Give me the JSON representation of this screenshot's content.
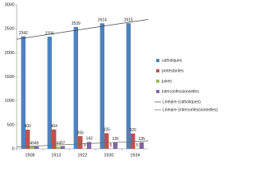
{
  "chart_data": {
    "type": "bar",
    "categories": [
      "1908",
      "1913",
      "1922",
      "1930",
      "1934"
    ],
    "series": [
      {
        "name": "catholiques",
        "color": "#4f81bd",
        "values": [
          2342,
          2336,
          2539,
          2614,
          2615
        ]
      },
      {
        "name": "protestantes",
        "color": "#c0504d",
        "values": [
          400,
          404,
          265,
          325,
          320
        ]
      },
      {
        "name": "juives",
        "color": "#9bbb59",
        "values": [
          49,
          44,
          9,
          5,
          5
        ]
      },
      {
        "name": "interconfessionnelles",
        "color": "#8064a2",
        "values": [
          49,
          57,
          143,
          135,
          135
        ]
      }
    ],
    "trendlines": [
      {
        "name": "Linéaire (catholiques)",
        "series": 0,
        "color": "#444444"
      },
      {
        "name": "Linéaire (interconfessionnelles)",
        "series": 3,
        "color": "#666666"
      }
    ],
    "ylim": [
      0,
      3000
    ],
    "yticks": [
      0,
      500,
      1000,
      1500,
      2000,
      2500,
      3000
    ],
    "grid": false
  }
}
